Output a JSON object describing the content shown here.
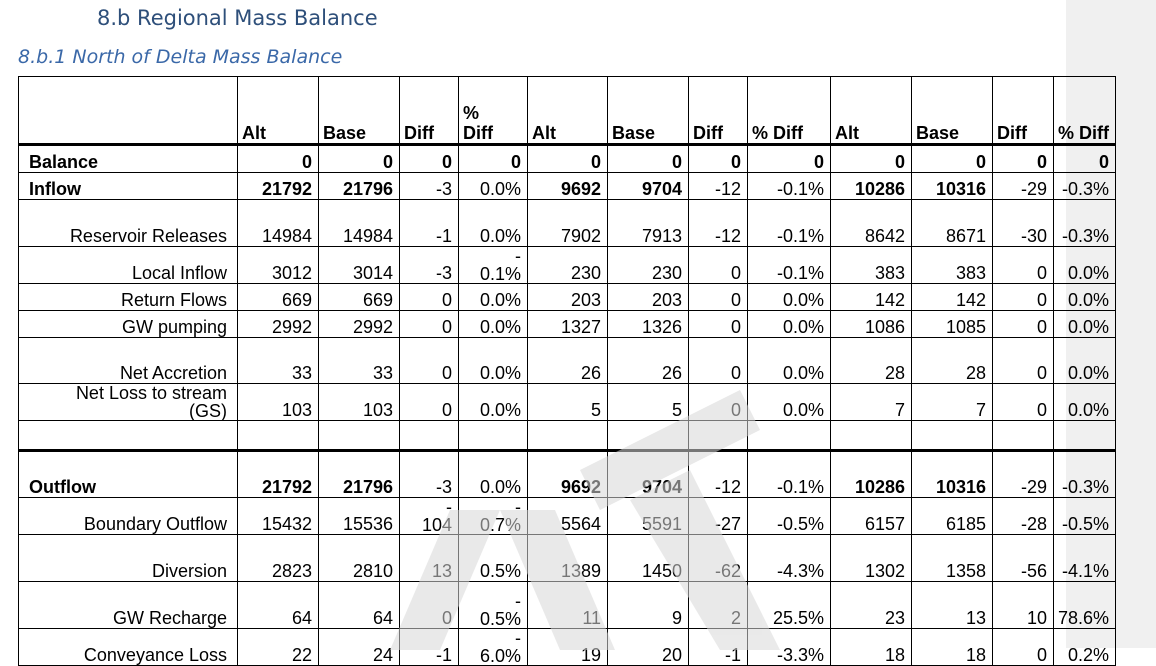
{
  "heading": "8.b Regional Mass Balance",
  "subheading": "8.b.1 North of Delta Mass Balance",
  "watermark": "DRAFT",
  "columns": [
    "Alt",
    "Base",
    "Diff",
    "%\nDiff",
    "Alt",
    "Base",
    "Diff",
    "% Diff",
    "Alt",
    "Base",
    "Diff",
    "% Diff"
  ],
  "rows": [
    {
      "label": "Balance",
      "bold": true,
      "vals": [
        "0",
        "0",
        "0",
        "0",
        "0",
        "0",
        "0",
        "0",
        "0",
        "0",
        "0",
        "0"
      ]
    },
    {
      "label": "Inflow",
      "bold": true,
      "vals": [
        "21792",
        "21796",
        "-3",
        "0.0%",
        "9692",
        "9704",
        "-12",
        "-0.1%",
        "10286",
        "10316",
        "-29",
        "-0.3%"
      ]
    },
    {
      "label": "Reservoir Releases",
      "bold": false,
      "vals": [
        "14984",
        "14984",
        "-1",
        "0.0%",
        "7902",
        "7913",
        "-12",
        "-0.1%",
        "8642",
        "8671",
        "-30",
        "-0.3%"
      ]
    },
    {
      "label": "Local Inflow",
      "bold": false,
      "vals": [
        "3012",
        "3014",
        "-3",
        "-\n0.1%",
        "230",
        "230",
        "0",
        "-0.1%",
        "383",
        "383",
        "0",
        "0.0%"
      ]
    },
    {
      "label": "Return Flows",
      "bold": false,
      "vals": [
        "669",
        "669",
        "0",
        "0.0%",
        "203",
        "203",
        "0",
        "0.0%",
        "142",
        "142",
        "0",
        "0.0%"
      ]
    },
    {
      "label": "GW pumping",
      "bold": false,
      "vals": [
        "2992",
        "2992",
        "0",
        "0.0%",
        "1327",
        "1326",
        "0",
        "0.0%",
        "1086",
        "1085",
        "0",
        "0.0%"
      ]
    },
    {
      "label": "Net Accretion",
      "bold": false,
      "vals": [
        "33",
        "33",
        "0",
        "0.0%",
        "26",
        "26",
        "0",
        "0.0%",
        "28",
        "28",
        "0",
        "0.0%"
      ]
    },
    {
      "label": "Net Loss to stream\n(GS)",
      "bold": false,
      "vals": [
        "103",
        "103",
        "0",
        "0.0%",
        "5",
        "5",
        "0",
        "0.0%",
        "7",
        "7",
        "0",
        "0.0%"
      ]
    },
    {
      "label": "",
      "bold": false,
      "vals": [
        "",
        "",
        "",
        "",
        "",
        "",
        "",
        "",
        "",
        "",
        "",
        ""
      ]
    },
    {
      "label": "Outflow",
      "bold": true,
      "vals": [
        "21792",
        "21796",
        "-3",
        "0.0%",
        "9692",
        "9704",
        "-12",
        "-0.1%",
        "10286",
        "10316",
        "-29",
        "-0.3%"
      ]
    },
    {
      "label": "Boundary Outflow",
      "bold": false,
      "vals": [
        "15432",
        "15536",
        "-\n104",
        "-\n0.7%",
        "5564",
        "5591",
        "-27",
        "-0.5%",
        "6157",
        "6185",
        "-28",
        "-0.5%"
      ]
    },
    {
      "label": "Diversion",
      "bold": false,
      "vals": [
        "2823",
        "2810",
        "13",
        "0.5%",
        "1389",
        "1450",
        "-62",
        "-4.3%",
        "1302",
        "1358",
        "-56",
        "-4.1%"
      ]
    },
    {
      "label": "GW Recharge",
      "bold": false,
      "vals": [
        "64",
        "64",
        "0",
        "-\n0.5%",
        "11",
        "9",
        "2",
        "25.5%",
        "23",
        "13",
        "10",
        "78.6%"
      ]
    },
    {
      "label": "Conveyance Loss",
      "bold": false,
      "vals": [
        "22",
        "24",
        "-1",
        "-\n6.0%",
        "19",
        "20",
        "-1",
        "-3.3%",
        "18",
        "18",
        "0",
        "0.2%"
      ]
    }
  ]
}
